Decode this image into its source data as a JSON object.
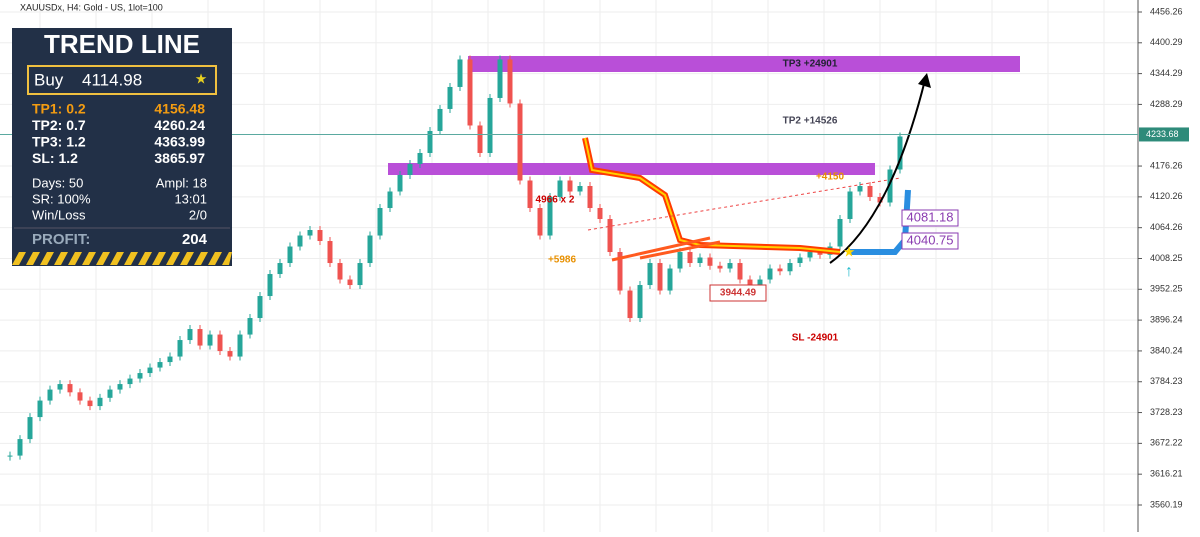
{
  "chart_data": {
    "type": "candlestick",
    "title": "XAUUSDx, H4:  Gold - US, 1lot=100",
    "closes": [
      3650,
      3680,
      3720,
      3750,
      3770,
      3780,
      3765,
      3750,
      3740,
      3755,
      3770,
      3780,
      3790,
      3800,
      3810,
      3820,
      3830,
      3860,
      3880,
      3850,
      3870,
      3840,
      3830,
      3870,
      3900,
      3940,
      3980,
      4000,
      4030,
      4050,
      4060,
      4040,
      4000,
      3970,
      3960,
      4000,
      4050,
      4100,
      4130,
      4160,
      4180,
      4200,
      4240,
      4280,
      4320,
      4370,
      4250,
      4200,
      4300,
      4370,
      4290,
      4150,
      4100,
      4050,
      4120,
      4150,
      4130,
      4140,
      4100,
      4080,
      4020,
      3950,
      3900,
      3960,
      4000,
      3950,
      3990,
      4020,
      4000,
      4010,
      3995,
      3990,
      4000,
      3970,
      3950,
      3970,
      3990,
      3985,
      4000,
      4010,
      4020,
      4015,
      4030,
      4080,
      4130,
      4140,
      4120,
      4110,
      4170,
      4230
    ],
    "up_color": "#26a69a",
    "down_color": "#ef5350",
    "ylim": [
      3560.19,
      4456.26
    ],
    "yticks": [
      3560.19,
      3616.21,
      3672.22,
      3728.23,
      3784.23,
      3840.24,
      3896.24,
      3952.25,
      4008.25,
      4064.26,
      4120.26,
      4176.26,
      4288.29,
      4344.29,
      4400.29,
      4456.26
    ],
    "last_price": 4233.68,
    "grid": true
  },
  "panel": {
    "title": "TREND LINE",
    "buy": [
      "Buy",
      "4114.98"
    ],
    "rows": [
      [
        "TP1: 0.2",
        "4156.48"
      ],
      [
        "TP2: 0.7",
        "4260.24"
      ],
      [
        "TP3: 1.2",
        "4363.99"
      ],
      [
        "SL: 1.2",
        "3865.97"
      ]
    ],
    "stats": [
      [
        "Days: 50",
        "Ampl: 18"
      ],
      [
        "SR:  100%",
        "13:01"
      ],
      [
        "Win/Loss",
        "2/0"
      ]
    ],
    "profit": [
      "PROFIT:",
      "204"
    ]
  },
  "annotations": [
    "TP3 +24901",
    "TP2 +14526",
    "+4150",
    "4966 x 2",
    "+5986",
    "3944.49",
    "SL -24901",
    "4081.18",
    "4040.75"
  ]
}
